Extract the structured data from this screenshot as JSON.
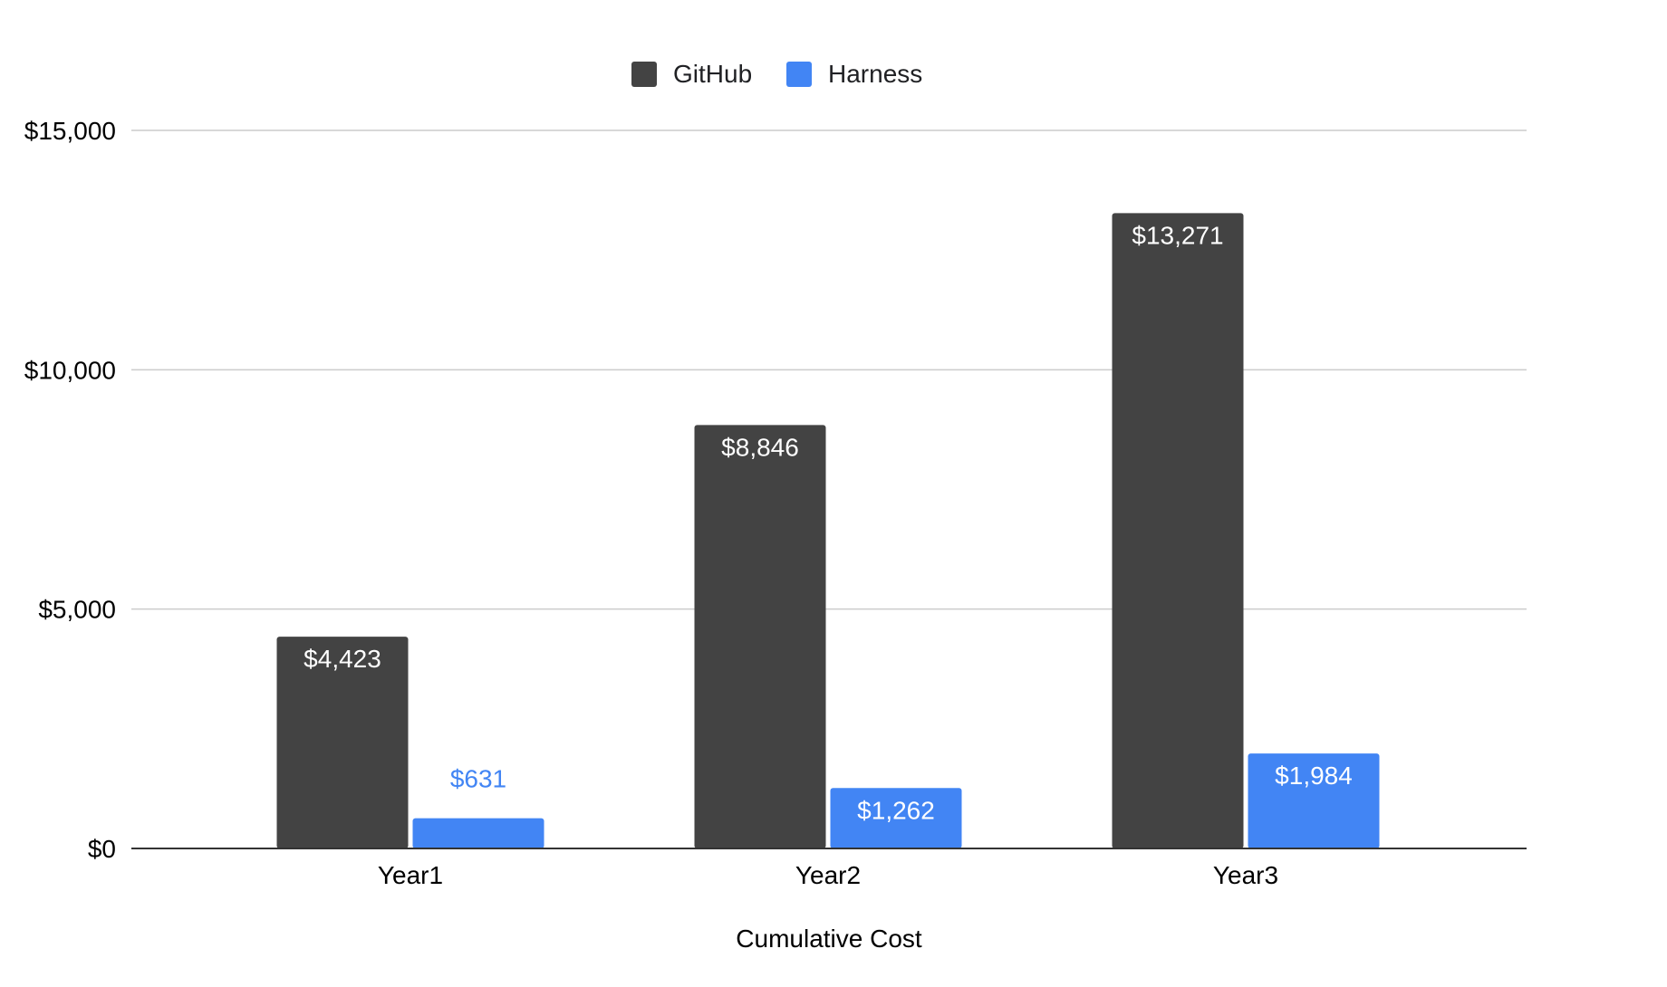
{
  "chart_data": {
    "type": "bar",
    "title": "",
    "xlabel": "Cumulative Cost",
    "ylabel": "",
    "categories": [
      "Year1",
      "Year2",
      "Year3"
    ],
    "series": [
      {
        "name": "GitHub",
        "color": "#434343",
        "values": [
          4423,
          8846,
          13271
        ],
        "labels": [
          "$4,423",
          "$8,846",
          "$13,271"
        ]
      },
      {
        "name": "Harness",
        "color": "#4285f4",
        "values": [
          631,
          1262,
          1984
        ],
        "labels": [
          "$631",
          "$1,262",
          "$1,984"
        ]
      }
    ],
    "ylim": [
      0,
      15000
    ],
    "yticks": [
      0,
      5000,
      10000,
      15000
    ],
    "ytick_labels": [
      "$0",
      "$5,000",
      "$10,000",
      "$15,000"
    ],
    "grid": true,
    "legend": "top-center",
    "colors": {
      "gridline": "#cccccc",
      "axis": "#333333",
      "label_inside": "#ffffff"
    }
  }
}
